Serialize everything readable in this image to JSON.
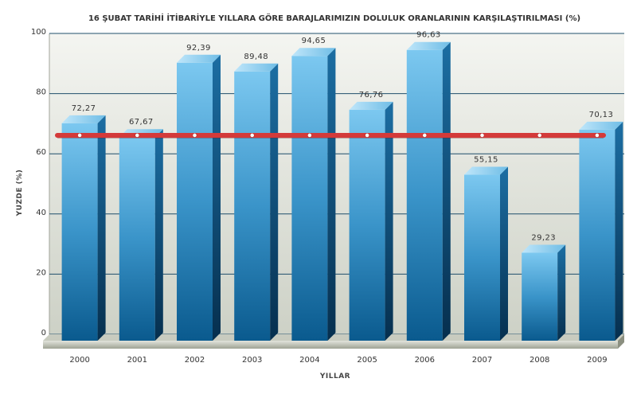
{
  "chart_data": {
    "type": "bar",
    "title": "16 ŞUBAT TARİHİ İTİBARİYLE YILLARA GÖRE BARAJLARIMIZIN DOLULUK ORANLARININ KARŞILAŞTIRILMASI (%)",
    "xlabel": "YILLAR",
    "ylabel": "YUZDE (%)",
    "categories": [
      "2000",
      "2001",
      "2002",
      "2003",
      "2004",
      "2005",
      "2006",
      "2007",
      "2008",
      "2009"
    ],
    "values": [
      72.27,
      67.67,
      92.39,
      89.48,
      94.65,
      76.76,
      96.63,
      55.15,
      29.23,
      70.13
    ],
    "value_labels": [
      "72,27",
      "67,67",
      "92,39",
      "89,48",
      "94,65",
      "76,76",
      "96,63",
      "55,15",
      "29,23",
      "70,13"
    ],
    "ylim": [
      0,
      100
    ],
    "yticks": [
      0,
      20,
      40,
      60,
      80,
      100
    ],
    "reference_line": {
      "value": 67.2,
      "color": "#d43a3a"
    },
    "grid": true,
    "style": "3d-bar",
    "colors": {
      "bar_top": "#7cc8f0",
      "bar_bottom": "#0a5a8e",
      "bar_side": "#084a75",
      "background": "#dcdfd6"
    }
  }
}
